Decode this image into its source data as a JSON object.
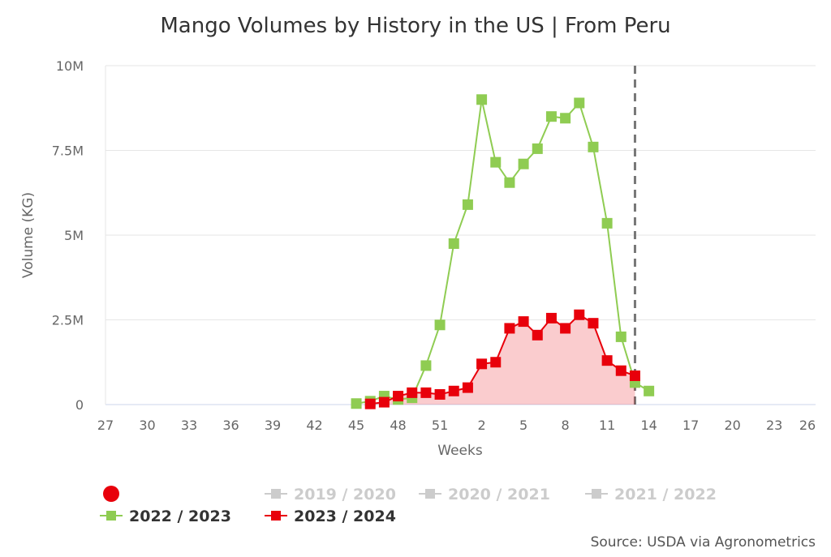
{
  "chart_data": {
    "type": "line",
    "title": "Mango Volumes by History in the US | From Peru",
    "xlabel": "Weeks",
    "ylabel": "Volume (KG)",
    "source": "Source: USDA via Agronometrics",
    "categories": [
      27,
      28,
      29,
      30,
      31,
      32,
      33,
      34,
      35,
      36,
      37,
      38,
      39,
      40,
      41,
      42,
      43,
      44,
      45,
      46,
      47,
      48,
      49,
      50,
      51,
      52,
      1,
      2,
      3,
      4,
      5,
      6,
      7,
      8,
      9,
      10,
      11,
      12,
      13,
      14,
      15,
      16,
      17,
      18,
      19,
      20,
      21,
      22,
      23,
      24,
      25,
      26
    ],
    "x_tick_labels": [
      "27",
      "30",
      "33",
      "36",
      "39",
      "42",
      "45",
      "48",
      "51",
      "2",
      "5",
      "8",
      "11",
      "14",
      "17",
      "20",
      "23",
      "26"
    ],
    "y_ticks": [
      0,
      2500000,
      5000000,
      7500000,
      10000000
    ],
    "y_tick_labels": [
      "0",
      "2.5M",
      "5M",
      "7.5M",
      "10M"
    ],
    "ylim": [
      0,
      10000000
    ],
    "grid": true,
    "current_week_marker": 13,
    "legend_placement": "bottom-left",
    "legend": [
      {
        "name": "",
        "color": "#e8000b",
        "marker": "circle",
        "active": true
      },
      {
        "name": "2019 / 2020",
        "color": "#cccccc",
        "active": false
      },
      {
        "name": "2020 / 2021",
        "color": "#cccccc",
        "active": false
      },
      {
        "name": "2021 / 2022",
        "color": "#cccccc",
        "active": false
      },
      {
        "name": "2022 / 2023",
        "color": "#8fcc52",
        "active": true
      },
      {
        "name": "2023 / 2024",
        "color": "#e8000b",
        "active": true
      }
    ],
    "series": [
      {
        "name": "2022 / 2023",
        "color": "#8fcc52",
        "area": false,
        "points": [
          [
            45,
            30000
          ],
          [
            46,
            100000
          ],
          [
            47,
            250000
          ],
          [
            48,
            150000
          ],
          [
            49,
            200000
          ],
          [
            50,
            1150000
          ],
          [
            51,
            2350000
          ],
          [
            52,
            4750000
          ],
          [
            1,
            5900000
          ],
          [
            2,
            9000000
          ],
          [
            3,
            7150000
          ],
          [
            4,
            6550000
          ],
          [
            5,
            7100000
          ],
          [
            6,
            7550000
          ],
          [
            7,
            8500000
          ],
          [
            8,
            8450000
          ],
          [
            9,
            8900000
          ],
          [
            10,
            7600000
          ],
          [
            11,
            5350000
          ],
          [
            12,
            2000000
          ],
          [
            13,
            650000
          ],
          [
            14,
            400000
          ]
        ]
      },
      {
        "name": "2023 / 2024",
        "color": "#e8000b",
        "area": true,
        "points": [
          [
            46,
            20000
          ],
          [
            47,
            70000
          ],
          [
            48,
            250000
          ],
          [
            49,
            350000
          ],
          [
            50,
            350000
          ],
          [
            51,
            300000
          ],
          [
            52,
            400000
          ],
          [
            1,
            500000
          ],
          [
            2,
            1200000
          ],
          [
            3,
            1250000
          ],
          [
            4,
            2250000
          ],
          [
            5,
            2450000
          ],
          [
            6,
            2050000
          ],
          [
            7,
            2550000
          ],
          [
            8,
            2250000
          ],
          [
            9,
            2650000
          ],
          [
            10,
            2400000
          ],
          [
            11,
            1300000
          ],
          [
            12,
            1000000
          ],
          [
            13,
            850000
          ]
        ]
      }
    ]
  }
}
